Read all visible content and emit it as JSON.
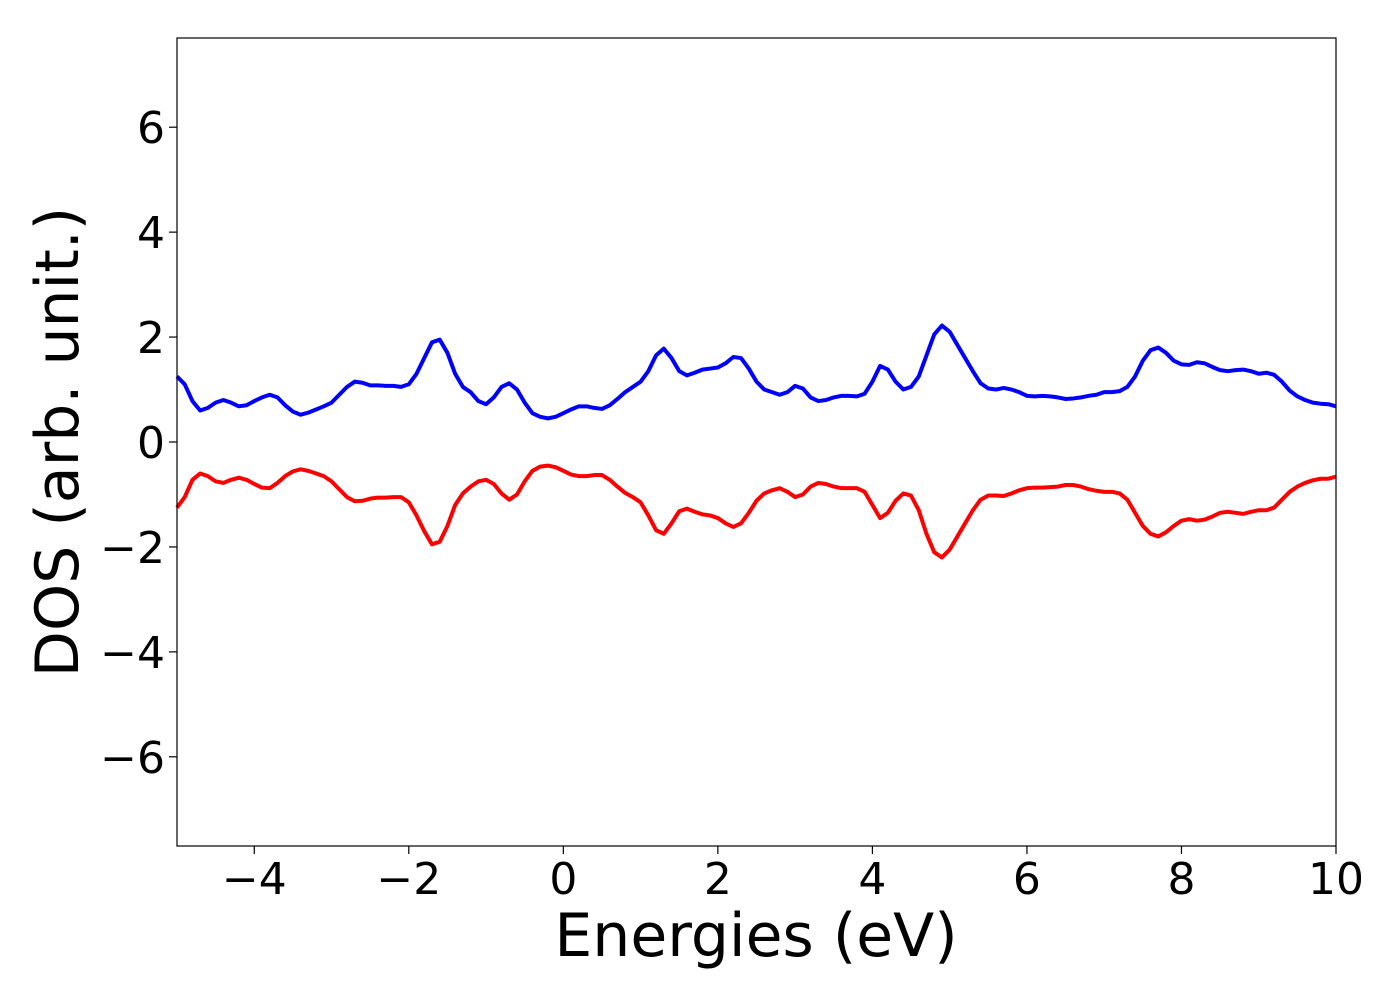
{
  "chart_data": {
    "type": "line",
    "title": "",
    "xlabel": "Energies (eV)",
    "ylabel": "DOS (arb. unit.)",
    "xlim": [
      -5,
      10
    ],
    "ylim": [
      -7.7,
      7.7
    ],
    "grid": false,
    "legend": "none",
    "xticks": [
      -4,
      -2,
      0,
      2,
      4,
      6,
      8,
      10
    ],
    "xtick_labels": [
      "−4",
      "−2",
      "0",
      "2",
      "4",
      "6",
      "8",
      "10"
    ],
    "yticks": [
      6,
      4,
      2,
      0,
      -2,
      -4,
      -6
    ],
    "ytick_labels": [
      "6",
      "4",
      "2",
      "0",
      "−2",
      "−4",
      "−6"
    ],
    "series": [
      {
        "color": "#0000ff",
        "x": [
          -5.0,
          -4.9,
          -4.8,
          -4.7,
          -4.6,
          -4.5,
          -4.4,
          -4.3,
          -4.2,
          -4.1,
          -4.0,
          -3.9,
          -3.8,
          -3.7,
          -3.6,
          -3.5,
          -3.4,
          -3.3,
          -3.2,
          -3.1,
          -3.0,
          -2.9,
          -2.8,
          -2.7,
          -2.6,
          -2.5,
          -2.4,
          -2.3,
          -2.2,
          -2.1,
          -2.0,
          -1.9,
          -1.8,
          -1.7,
          -1.6,
          -1.5,
          -1.4,
          -1.3,
          -1.2,
          -1.1,
          -1.0,
          -0.9,
          -0.8,
          -0.7,
          -0.6,
          -0.5,
          -0.4,
          -0.3,
          -0.2,
          -0.1,
          0.0,
          0.1,
          0.2,
          0.3,
          0.4,
          0.5,
          0.6,
          0.7,
          0.8,
          0.9,
          1.0,
          1.1,
          1.2,
          1.3,
          1.4,
          1.5,
          1.6,
          1.7,
          1.8,
          1.9,
          2.0,
          2.1,
          2.2,
          2.3,
          2.4,
          2.5,
          2.6,
          2.7,
          2.8,
          2.9,
          3.0,
          3.1,
          3.2,
          3.3,
          3.4,
          3.5,
          3.6,
          3.7,
          3.8,
          3.9,
          4.0,
          4.1,
          4.2,
          4.3,
          4.4,
          4.5,
          4.6,
          4.7,
          4.8,
          4.9,
          5.0,
          5.1,
          5.2,
          5.3,
          5.4,
          5.5,
          5.6,
          5.7,
          5.8,
          5.9,
          6.0,
          6.1,
          6.2,
          6.3,
          6.4,
          6.5,
          6.6,
          6.7,
          6.8,
          6.9,
          7.0,
          7.1,
          7.2,
          7.3,
          7.4,
          7.5,
          7.6,
          7.7,
          7.8,
          7.9,
          8.0,
          8.1,
          8.2,
          8.3,
          8.4,
          8.5,
          8.6,
          8.7,
          8.8,
          8.9,
          9.0,
          9.1,
          9.2,
          9.3,
          9.4,
          9.5,
          9.6,
          9.7,
          9.8,
          9.9,
          10.0
        ],
        "y": [
          1.25,
          1.1,
          0.78,
          0.6,
          0.65,
          0.75,
          0.8,
          0.75,
          0.68,
          0.7,
          0.78,
          0.85,
          0.9,
          0.85,
          0.7,
          0.58,
          0.52,
          0.56,
          0.62,
          0.68,
          0.75,
          0.9,
          1.05,
          1.15,
          1.13,
          1.08,
          1.08,
          1.07,
          1.07,
          1.05,
          1.1,
          1.3,
          1.6,
          1.9,
          1.95,
          1.7,
          1.3,
          1.05,
          0.95,
          0.78,
          0.72,
          0.85,
          1.05,
          1.12,
          1.0,
          0.75,
          0.55,
          0.48,
          0.45,
          0.48,
          0.55,
          0.62,
          0.68,
          0.68,
          0.65,
          0.63,
          0.7,
          0.82,
          0.95,
          1.05,
          1.15,
          1.35,
          1.65,
          1.78,
          1.6,
          1.35,
          1.27,
          1.32,
          1.38,
          1.4,
          1.42,
          1.5,
          1.62,
          1.6,
          1.4,
          1.15,
          1.0,
          0.95,
          0.9,
          0.95,
          1.07,
          1.02,
          0.85,
          0.78,
          0.8,
          0.85,
          0.88,
          0.88,
          0.87,
          0.92,
          1.15,
          1.45,
          1.38,
          1.15,
          1.0,
          1.05,
          1.25,
          1.65,
          2.05,
          2.22,
          2.1,
          1.85,
          1.6,
          1.35,
          1.12,
          1.02,
          1.0,
          1.03,
          1.0,
          0.95,
          0.88,
          0.87,
          0.88,
          0.87,
          0.85,
          0.82,
          0.83,
          0.85,
          0.88,
          0.9,
          0.95,
          0.95,
          0.97,
          1.05,
          1.25,
          1.55,
          1.75,
          1.8,
          1.7,
          1.55,
          1.48,
          1.47,
          1.52,
          1.5,
          1.43,
          1.37,
          1.35,
          1.37,
          1.38,
          1.35,
          1.3,
          1.32,
          1.28,
          1.15,
          0.98,
          0.87,
          0.8,
          0.75,
          0.73,
          0.72,
          0.68
        ]
      },
      {
        "color": "#ff0000",
        "x": [
          -5.0,
          -4.9,
          -4.8,
          -4.7,
          -4.6,
          -4.5,
          -4.4,
          -4.3,
          -4.2,
          -4.1,
          -4.0,
          -3.9,
          -3.8,
          -3.7,
          -3.6,
          -3.5,
          -3.4,
          -3.3,
          -3.2,
          -3.1,
          -3.0,
          -2.9,
          -2.8,
          -2.7,
          -2.6,
          -2.5,
          -2.4,
          -2.3,
          -2.2,
          -2.1,
          -2.0,
          -1.9,
          -1.8,
          -1.7,
          -1.6,
          -1.5,
          -1.4,
          -1.3,
          -1.2,
          -1.1,
          -1.0,
          -0.9,
          -0.8,
          -0.7,
          -0.6,
          -0.5,
          -0.4,
          -0.3,
          -0.2,
          -0.1,
          0.0,
          0.1,
          0.2,
          0.3,
          0.4,
          0.5,
          0.6,
          0.7,
          0.8,
          0.9,
          1.0,
          1.1,
          1.2,
          1.3,
          1.4,
          1.5,
          1.6,
          1.7,
          1.8,
          1.9,
          2.0,
          2.1,
          2.2,
          2.3,
          2.4,
          2.5,
          2.6,
          2.7,
          2.8,
          2.9,
          3.0,
          3.1,
          3.2,
          3.3,
          3.4,
          3.5,
          3.6,
          3.7,
          3.8,
          3.9,
          4.0,
          4.1,
          4.2,
          4.3,
          4.4,
          4.5,
          4.6,
          4.7,
          4.8,
          4.9,
          5.0,
          5.1,
          5.2,
          5.3,
          5.4,
          5.5,
          5.6,
          5.7,
          5.8,
          5.9,
          6.0,
          6.1,
          6.2,
          6.3,
          6.4,
          6.5,
          6.6,
          6.7,
          6.8,
          6.9,
          7.0,
          7.1,
          7.2,
          7.3,
          7.4,
          7.5,
          7.6,
          7.7,
          7.8,
          7.9,
          8.0,
          8.1,
          8.2,
          8.3,
          8.4,
          8.5,
          8.6,
          8.7,
          8.8,
          8.9,
          9.0,
          9.1,
          9.2,
          9.3,
          9.4,
          9.5,
          9.6,
          9.7,
          9.8,
          9.9,
          10.0
        ],
        "y": [
          -1.25,
          -1.05,
          -0.72,
          -0.6,
          -0.65,
          -0.75,
          -0.78,
          -0.72,
          -0.68,
          -0.72,
          -0.8,
          -0.87,
          -0.88,
          -0.78,
          -0.65,
          -0.56,
          -0.52,
          -0.55,
          -0.6,
          -0.65,
          -0.75,
          -0.9,
          -1.05,
          -1.13,
          -1.12,
          -1.08,
          -1.06,
          -1.06,
          -1.05,
          -1.05,
          -1.15,
          -1.4,
          -1.7,
          -1.95,
          -1.9,
          -1.6,
          -1.2,
          -0.98,
          -0.85,
          -0.75,
          -0.72,
          -0.8,
          -0.98,
          -1.1,
          -1.0,
          -0.75,
          -0.55,
          -0.47,
          -0.45,
          -0.48,
          -0.55,
          -0.62,
          -0.65,
          -0.65,
          -0.63,
          -0.63,
          -0.72,
          -0.85,
          -0.97,
          -1.05,
          -1.15,
          -1.4,
          -1.68,
          -1.75,
          -1.55,
          -1.32,
          -1.27,
          -1.33,
          -1.38,
          -1.4,
          -1.45,
          -1.55,
          -1.62,
          -1.55,
          -1.35,
          -1.12,
          -0.98,
          -0.92,
          -0.88,
          -0.95,
          -1.05,
          -1.0,
          -0.85,
          -0.78,
          -0.8,
          -0.85,
          -0.88,
          -0.88,
          -0.88,
          -0.95,
          -1.2,
          -1.45,
          -1.35,
          -1.12,
          -0.98,
          -1.02,
          -1.3,
          -1.75,
          -2.1,
          -2.2,
          -2.05,
          -1.8,
          -1.55,
          -1.3,
          -1.1,
          -1.02,
          -1.02,
          -1.03,
          -0.98,
          -0.92,
          -0.88,
          -0.87,
          -0.87,
          -0.86,
          -0.85,
          -0.82,
          -0.82,
          -0.85,
          -0.9,
          -0.93,
          -0.95,
          -0.95,
          -0.98,
          -1.1,
          -1.35,
          -1.6,
          -1.75,
          -1.8,
          -1.72,
          -1.6,
          -1.5,
          -1.47,
          -1.5,
          -1.48,
          -1.42,
          -1.35,
          -1.33,
          -1.35,
          -1.37,
          -1.33,
          -1.3,
          -1.3,
          -1.25,
          -1.1,
          -0.95,
          -0.85,
          -0.78,
          -0.73,
          -0.7,
          -0.7,
          -0.66
        ]
      }
    ]
  }
}
